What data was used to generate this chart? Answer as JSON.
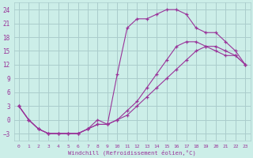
{
  "xlabel": "Windchill (Refroidissement éolien,°C)",
  "background_color": "#cceee8",
  "grid_color": "#aacccc",
  "line_color": "#993399",
  "xlim": [
    -0.5,
    23.5
  ],
  "ylim": [
    -4.5,
    25.5
  ],
  "xticks": [
    0,
    1,
    2,
    3,
    4,
    5,
    6,
    7,
    8,
    9,
    10,
    11,
    12,
    13,
    14,
    15,
    16,
    17,
    18,
    19,
    20,
    21,
    22,
    23
  ],
  "yticks": [
    -3,
    0,
    3,
    6,
    9,
    12,
    15,
    18,
    21,
    24
  ],
  "series1_x": [
    0,
    1,
    2,
    3,
    4,
    5,
    6,
    7,
    8,
    9,
    10,
    11,
    12,
    13,
    14,
    15,
    16,
    17,
    18,
    19,
    20,
    21,
    22,
    23
  ],
  "series1_y": [
    3,
    0,
    -2,
    -3,
    -3,
    -3,
    -3,
    -2,
    -1,
    -1,
    0,
    2,
    4,
    7,
    10,
    13,
    16,
    17,
    17,
    16,
    15,
    14,
    14,
    12
  ],
  "series2_x": [
    0,
    1,
    2,
    3,
    4,
    5,
    6,
    7,
    8,
    9,
    10,
    11,
    12,
    13,
    14,
    15,
    16,
    17,
    18,
    19,
    20,
    21,
    22,
    23
  ],
  "series2_y": [
    3,
    0,
    -2,
    -3,
    -3,
    -3,
    -3,
    -2,
    0,
    -1,
    10,
    20,
    22,
    22,
    23,
    24,
    24,
    23,
    20,
    19,
    19,
    17,
    15,
    12
  ],
  "series3_x": [
    0,
    1,
    2,
    3,
    4,
    5,
    6,
    7,
    8,
    9,
    10,
    11,
    12,
    13,
    14,
    15,
    16,
    17,
    18,
    19,
    20,
    21,
    22,
    23
  ],
  "series3_y": [
    3,
    0,
    -2,
    -3,
    -3,
    -3,
    -3,
    -2,
    -1,
    -1,
    0,
    1,
    3,
    5,
    7,
    9,
    11,
    13,
    15,
    16,
    16,
    15,
    14,
    12
  ]
}
